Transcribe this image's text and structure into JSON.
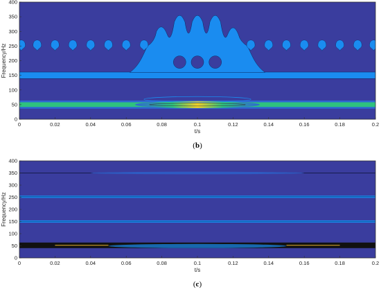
{
  "chart_data": [
    {
      "type": "heatmap",
      "title": "",
      "caption": "(b)",
      "xlabel": "t/s",
      "ylabel": "Frequency/Hz",
      "xlim": [
        0,
        0.2
      ],
      "ylim": [
        0,
        400
      ],
      "xticks": [
        "0",
        "0.02",
        "0.04",
        "0.06",
        "0.08",
        "0.1",
        "0.12",
        "0.14",
        "0.16",
        "0.18",
        "0.2"
      ],
      "yticks": [
        "0",
        "50",
        "100",
        "150",
        "200",
        "250",
        "300",
        "350",
        "400"
      ],
      "colors": {
        "background": "#3a3d9e",
        "low": "#2f66d3",
        "mid": "#1a8cf0",
        "high": "#f2d12a",
        "green": "#2ec27e"
      },
      "bands": [
        {
          "freq_center": 50,
          "freq_width": 14,
          "level": "high",
          "t_start": 0,
          "t_end": 0.2
        },
        {
          "freq_center": 150,
          "freq_width": 22,
          "level": "mid",
          "t_start": 0,
          "t_end": 0.2
        }
      ],
      "blobs": {
        "freq": 255,
        "t_values": [
          0.001,
          0.01,
          0.02,
          0.03,
          0.04,
          0.05,
          0.06,
          0.07,
          0.13,
          0.14,
          0.15,
          0.16,
          0.17,
          0.18,
          0.19,
          0.199
        ]
      },
      "burst": {
        "t_start": 0.07,
        "t_end": 0.13,
        "freq_min": 160,
        "peaks": [
          {
            "t": 0.08,
            "freq": 320
          },
          {
            "t": 0.09,
            "freq": 362
          },
          {
            "t": 0.1,
            "freq": 362
          },
          {
            "t": 0.11,
            "freq": 362
          },
          {
            "t": 0.12,
            "freq": 320
          }
        ],
        "holes_freq": 195,
        "holes_t": [
          0.09,
          0.1,
          0.11
        ]
      }
    },
    {
      "type": "heatmap",
      "title": "",
      "caption": "(c)",
      "xlabel": "t/s",
      "ylabel": "Frequency/Hz",
      "xlim": [
        0,
        0.2
      ],
      "ylim": [
        0,
        400
      ],
      "xticks": [
        "0",
        "0.02",
        "0.04",
        "0.06",
        "0.08",
        "0.1",
        "0.12",
        "0.14",
        "0.16",
        "0.18",
        "0.2"
      ],
      "yticks": [
        "0",
        "50",
        "100",
        "150",
        "200",
        "250",
        "300",
        "350",
        "400"
      ],
      "colors": {
        "background": "#3a3d9e",
        "line": "#1a8cf0",
        "dark": "#0a0a0a",
        "warm": "#e8b22e"
      },
      "lines": [
        {
          "freq": 52,
          "style": "dark-thick",
          "t_start": 0,
          "t_end": 0.2
        },
        {
          "freq": 150,
          "style": "blue",
          "t_start": 0,
          "t_end": 0.2
        },
        {
          "freq": 252,
          "style": "blue",
          "t_start": 0,
          "t_end": 0.2
        },
        {
          "freq": 350,
          "style": "faint",
          "t_start": 0,
          "t_end": 0.2
        }
      ]
    }
  ]
}
